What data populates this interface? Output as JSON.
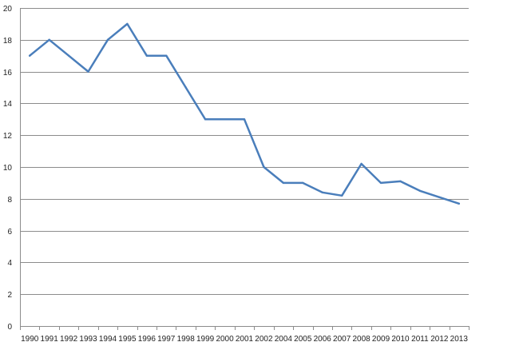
{
  "chart_data": {
    "type": "line",
    "title": "",
    "xlabel": "",
    "ylabel": "",
    "ylim": [
      0,
      20
    ],
    "y_ticks": [
      0,
      2,
      4,
      6,
      8,
      10,
      12,
      14,
      16,
      18,
      20
    ],
    "categories": [
      "1990",
      "1991",
      "1992",
      "1993",
      "1994",
      "1995",
      "1996",
      "1997",
      "1998",
      "1999",
      "2000",
      "2001",
      "2002",
      "2004",
      "2005",
      "2006",
      "2007",
      "2008",
      "2009",
      "2010",
      "2011",
      "2012",
      "2013"
    ],
    "series": [
      {
        "name": "",
        "color": "#4a7ebb",
        "values": [
          17,
          18,
          17,
          16,
          18,
          19,
          17,
          17,
          15,
          13,
          13,
          13,
          10,
          9,
          9,
          8.4,
          8.2,
          10.2,
          9,
          9.1,
          8.5,
          8.1,
          7.7
        ]
      }
    ],
    "grid": true,
    "legend": "none"
  }
}
